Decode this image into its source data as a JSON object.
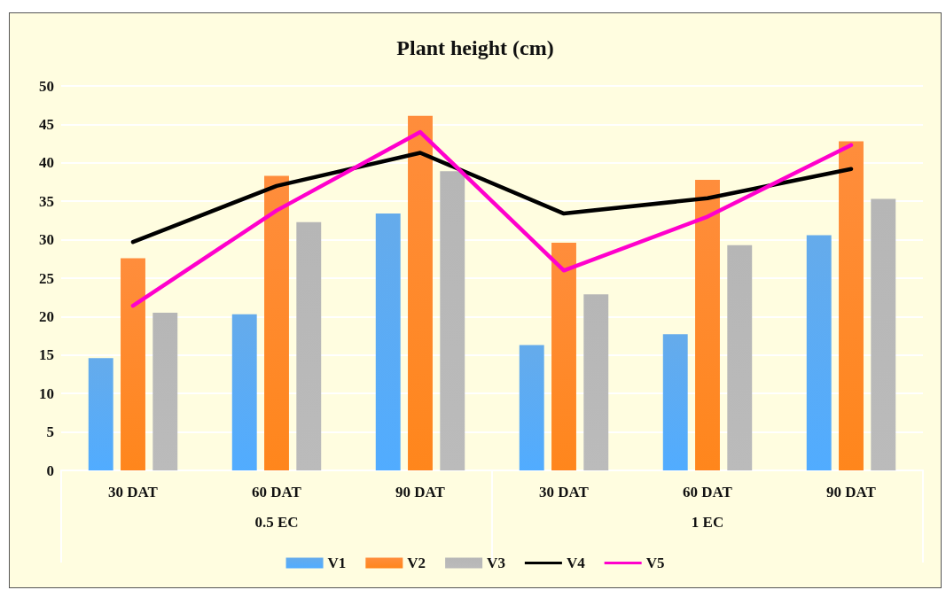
{
  "chart_data": {
    "type": "bar",
    "title": "Plant height (cm)",
    "categories": [
      "30 DAT",
      "60 DAT",
      "90 DAT",
      "30 DAT",
      "60 DAT",
      "90 DAT"
    ],
    "annotations": [
      "0.5 EC",
      "1 EC"
    ],
    "series": [
      {
        "name": "V1",
        "color": "#4a9de8",
        "values": [
          14.6,
          20.3,
          33.4,
          16.3,
          17.7,
          30.6
        ]
      },
      {
        "name": "V2",
        "color": "#ff7a1a",
        "values": [
          27.6,
          38.3,
          46.1,
          29.6,
          37.8,
          42.8
        ]
      },
      {
        "name": "V3",
        "color": "#aaaaaa",
        "values": [
          20.5,
          32.3,
          38.9,
          22.9,
          29.3,
          35.3
        ]
      },
      {
        "name": "V4",
        "type": "line",
        "color": "#000000",
        "values": [
          29.7,
          37.0,
          41.3,
          33.4,
          35.4,
          39.2
        ]
      },
      {
        "name": "V5",
        "type": "line",
        "color": "#ff00cc",
        "values": [
          21.4,
          33.8,
          44.0,
          26.0,
          33.0,
          42.3
        ]
      }
    ],
    "ylim": [
      0,
      50
    ],
    "yticks": [
      0,
      5,
      10,
      15,
      20,
      25,
      30,
      35,
      40,
      45,
      50
    ],
    "grid": "y",
    "legend": "bottom",
    "marker": "none",
    "line_style": "solid"
  }
}
